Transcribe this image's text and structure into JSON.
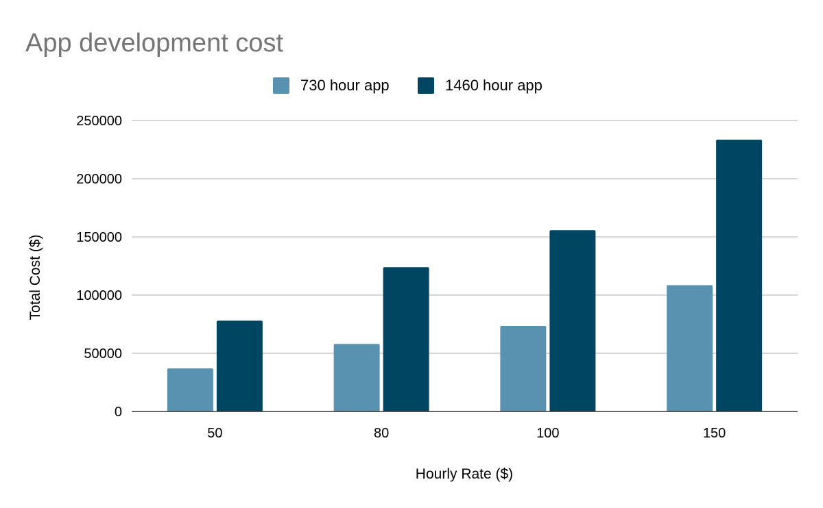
{
  "chart_data": {
    "type": "bar",
    "title": "App development cost",
    "xlabel": "Hourly Rate ($)",
    "ylabel": "Total Cost ($)",
    "categories": [
      "50",
      "80",
      "100",
      "150"
    ],
    "series": [
      {
        "name": "730 hour app",
        "values": [
          37000,
          58000,
          73500,
          108500
        ],
        "color": "#5892b0"
      },
      {
        "name": "1460 hour app",
        "values": [
          78000,
          124000,
          155700,
          233500
        ],
        "color": "#004561"
      }
    ],
    "ylim": [
      0,
      250000
    ],
    "yticks": [
      0,
      50000,
      100000,
      150000,
      200000,
      250000
    ],
    "ytick_labels": [
      "0",
      "50000",
      "100000",
      "150000",
      "200000",
      "250000"
    ],
    "grid": true,
    "legend_position": "top-center"
  }
}
